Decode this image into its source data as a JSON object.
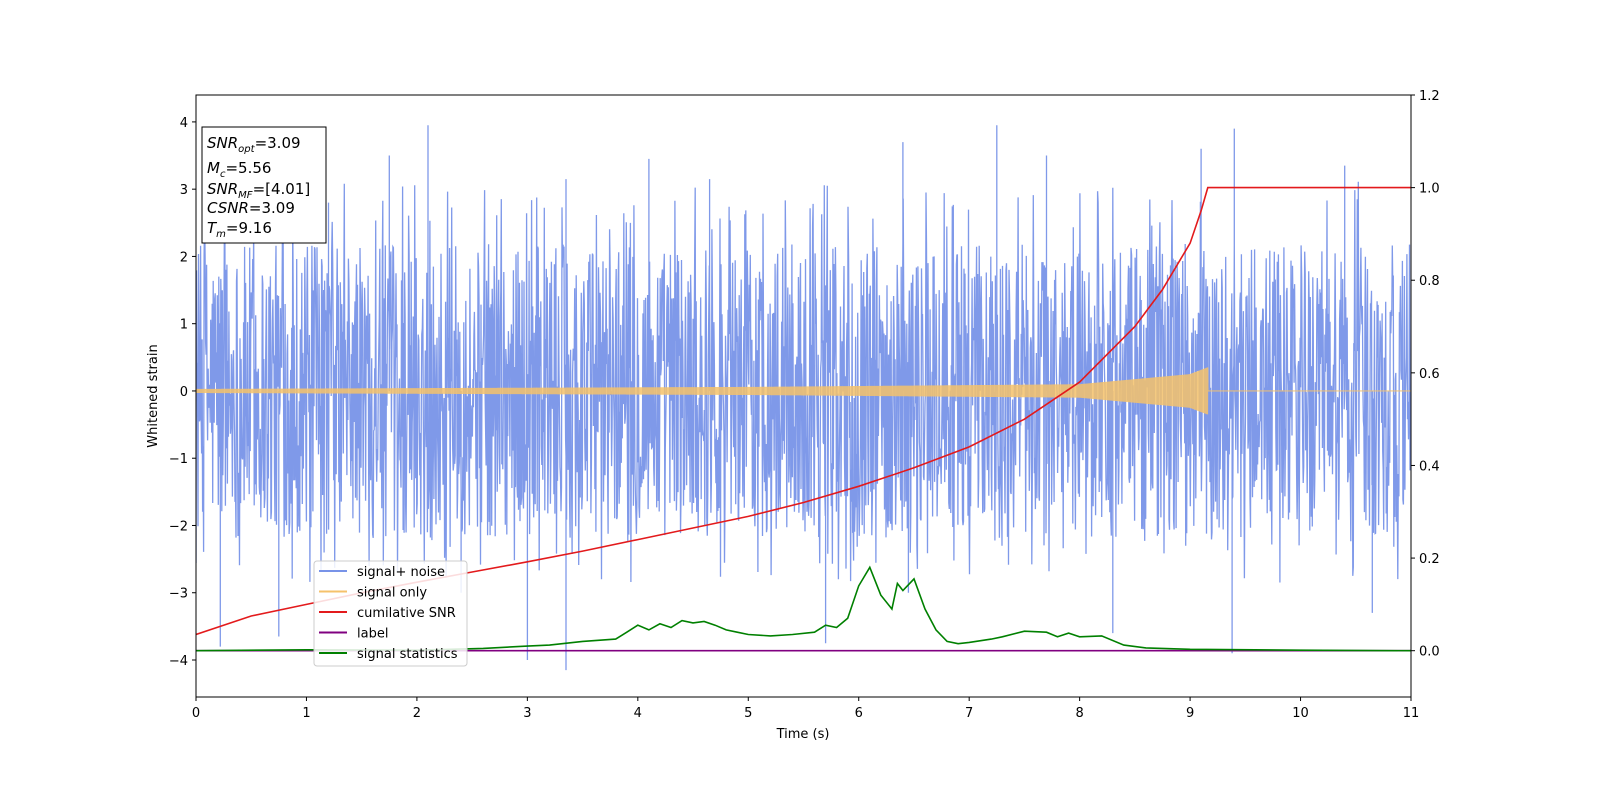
{
  "chart_data": {
    "type": "line",
    "title": "",
    "xlabel": "Time (s)",
    "ylabel": "Whitened strain",
    "xlim": [
      0,
      11
    ],
    "ylim": [
      -4.55,
      4.4
    ],
    "y2lim": [
      -0.1,
      1.2
    ],
    "grid": false,
    "x_ticks": [
      0,
      1,
      2,
      3,
      4,
      5,
      6,
      7,
      8,
      9,
      10,
      11
    ],
    "y_ticks": [
      -4,
      -3,
      -2,
      -1,
      0,
      1,
      2,
      3,
      4
    ],
    "y2_ticks": [
      0.0,
      0.2,
      0.4,
      0.6,
      0.8,
      1.0,
      1.2
    ],
    "legend_position": "lower-left",
    "annotation_box": {
      "position": "top-left",
      "lines": [
        {
          "main": "SNR",
          "sub": "opt",
          "value": "=3.09"
        },
        {
          "main": "M",
          "sub": "c",
          "value": "=5.56"
        },
        {
          "main": "SNR",
          "sub": "MF",
          "value": "=[4.01]"
        },
        {
          "main": "CSNR",
          "sub": "",
          "value": "=3.09"
        },
        {
          "main": "T",
          "sub": "m",
          "value": "=9.16"
        }
      ]
    },
    "series": [
      {
        "name": "signal+ noise",
        "axis": "left",
        "color": "#7893e8",
        "description_kind": "noise",
        "typical_range": [
          -2.2,
          2.4
        ],
        "spikes": [
          {
            "x": 0.22,
            "y": -3.8
          },
          {
            "x": 0.75,
            "y": -3.65
          },
          {
            "x": 1.2,
            "y": 2.8
          },
          {
            "x": 1.75,
            "y": 3.5
          },
          {
            "x": 2.1,
            "y": 3.95
          },
          {
            "x": 2.4,
            "y": -3.0
          },
          {
            "x": 3.0,
            "y": -4.0
          },
          {
            "x": 3.35,
            "y": -4.15
          },
          {
            "x": 3.35,
            "y": 3.15
          },
          {
            "x": 4.1,
            "y": 3.45
          },
          {
            "x": 4.65,
            "y": 3.15
          },
          {
            "x": 5.7,
            "y": -3.75
          },
          {
            "x": 6.4,
            "y": 3.7
          },
          {
            "x": 6.45,
            "y": -3.0
          },
          {
            "x": 7.25,
            "y": 3.95
          },
          {
            "x": 7.7,
            "y": 3.5
          },
          {
            "x": 8.3,
            "y": -3.6
          },
          {
            "x": 9.1,
            "y": 3.6
          },
          {
            "x": 9.4,
            "y": 3.9
          },
          {
            "x": 9.38,
            "y": -3.9
          },
          {
            "x": 10.4,
            "y": 3.35
          },
          {
            "x": 10.65,
            "y": -3.3
          }
        ]
      },
      {
        "name": "signal only",
        "axis": "left",
        "color": "#f5c26b",
        "chirp": {
          "x_start": 0.0,
          "x_merge": 9.16,
          "x_end": 11.0,
          "amplitude": [
            [
              0.0,
              0.03
            ],
            [
              5.0,
              0.06
            ],
            [
              8.0,
              0.1
            ],
            [
              9.0,
              0.25
            ],
            [
              9.16,
              0.35
            ]
          ]
        }
      },
      {
        "name": "cumilative SNR",
        "axis": "right",
        "color": "#e31a1c",
        "x": [
          0.0,
          0.5,
          1.0,
          1.5,
          2.0,
          2.5,
          3.0,
          3.5,
          4.0,
          4.5,
          5.0,
          5.5,
          6.0,
          6.5,
          7.0,
          7.5,
          8.0,
          8.5,
          8.75,
          9.0,
          9.1,
          9.16,
          9.2,
          11.0
        ],
        "y": [
          0.035,
          0.075,
          0.1,
          0.125,
          0.148,
          0.17,
          0.192,
          0.215,
          0.24,
          0.265,
          0.29,
          0.32,
          0.355,
          0.395,
          0.44,
          0.5,
          0.58,
          0.7,
          0.78,
          0.88,
          0.95,
          1.0,
          1.0,
          1.0
        ]
      },
      {
        "name": "label",
        "axis": "right",
        "color": "#800080",
        "x": [
          0.0,
          11.0
        ],
        "y": [
          0.0,
          0.0
        ]
      },
      {
        "name": "signal statistics",
        "axis": "right",
        "color": "#008000",
        "x": [
          0.0,
          1.0,
          2.0,
          2.6,
          3.0,
          3.2,
          3.5,
          3.8,
          3.9,
          4.0,
          4.1,
          4.2,
          4.3,
          4.4,
          4.5,
          4.6,
          4.7,
          4.8,
          4.9,
          5.0,
          5.2,
          5.4,
          5.6,
          5.7,
          5.8,
          5.9,
          6.0,
          6.1,
          6.2,
          6.3,
          6.35,
          6.4,
          6.5,
          6.6,
          6.7,
          6.8,
          6.9,
          7.0,
          7.2,
          7.3,
          7.5,
          7.7,
          7.8,
          7.9,
          8.0,
          8.2,
          8.4,
          8.6,
          9.0,
          10.0,
          11.0
        ],
        "y": [
          0.0,
          0.002,
          0.001,
          0.005,
          0.01,
          0.012,
          0.02,
          0.025,
          0.04,
          0.055,
          0.045,
          0.058,
          0.05,
          0.065,
          0.06,
          0.063,
          0.055,
          0.045,
          0.04,
          0.035,
          0.032,
          0.035,
          0.04,
          0.055,
          0.05,
          0.07,
          0.14,
          0.18,
          0.12,
          0.09,
          0.145,
          0.13,
          0.155,
          0.09,
          0.045,
          0.02,
          0.015,
          0.018,
          0.025,
          0.03,
          0.042,
          0.04,
          0.03,
          0.038,
          0.03,
          0.032,
          0.012,
          0.006,
          0.003,
          0.001,
          0.0
        ]
      }
    ]
  }
}
